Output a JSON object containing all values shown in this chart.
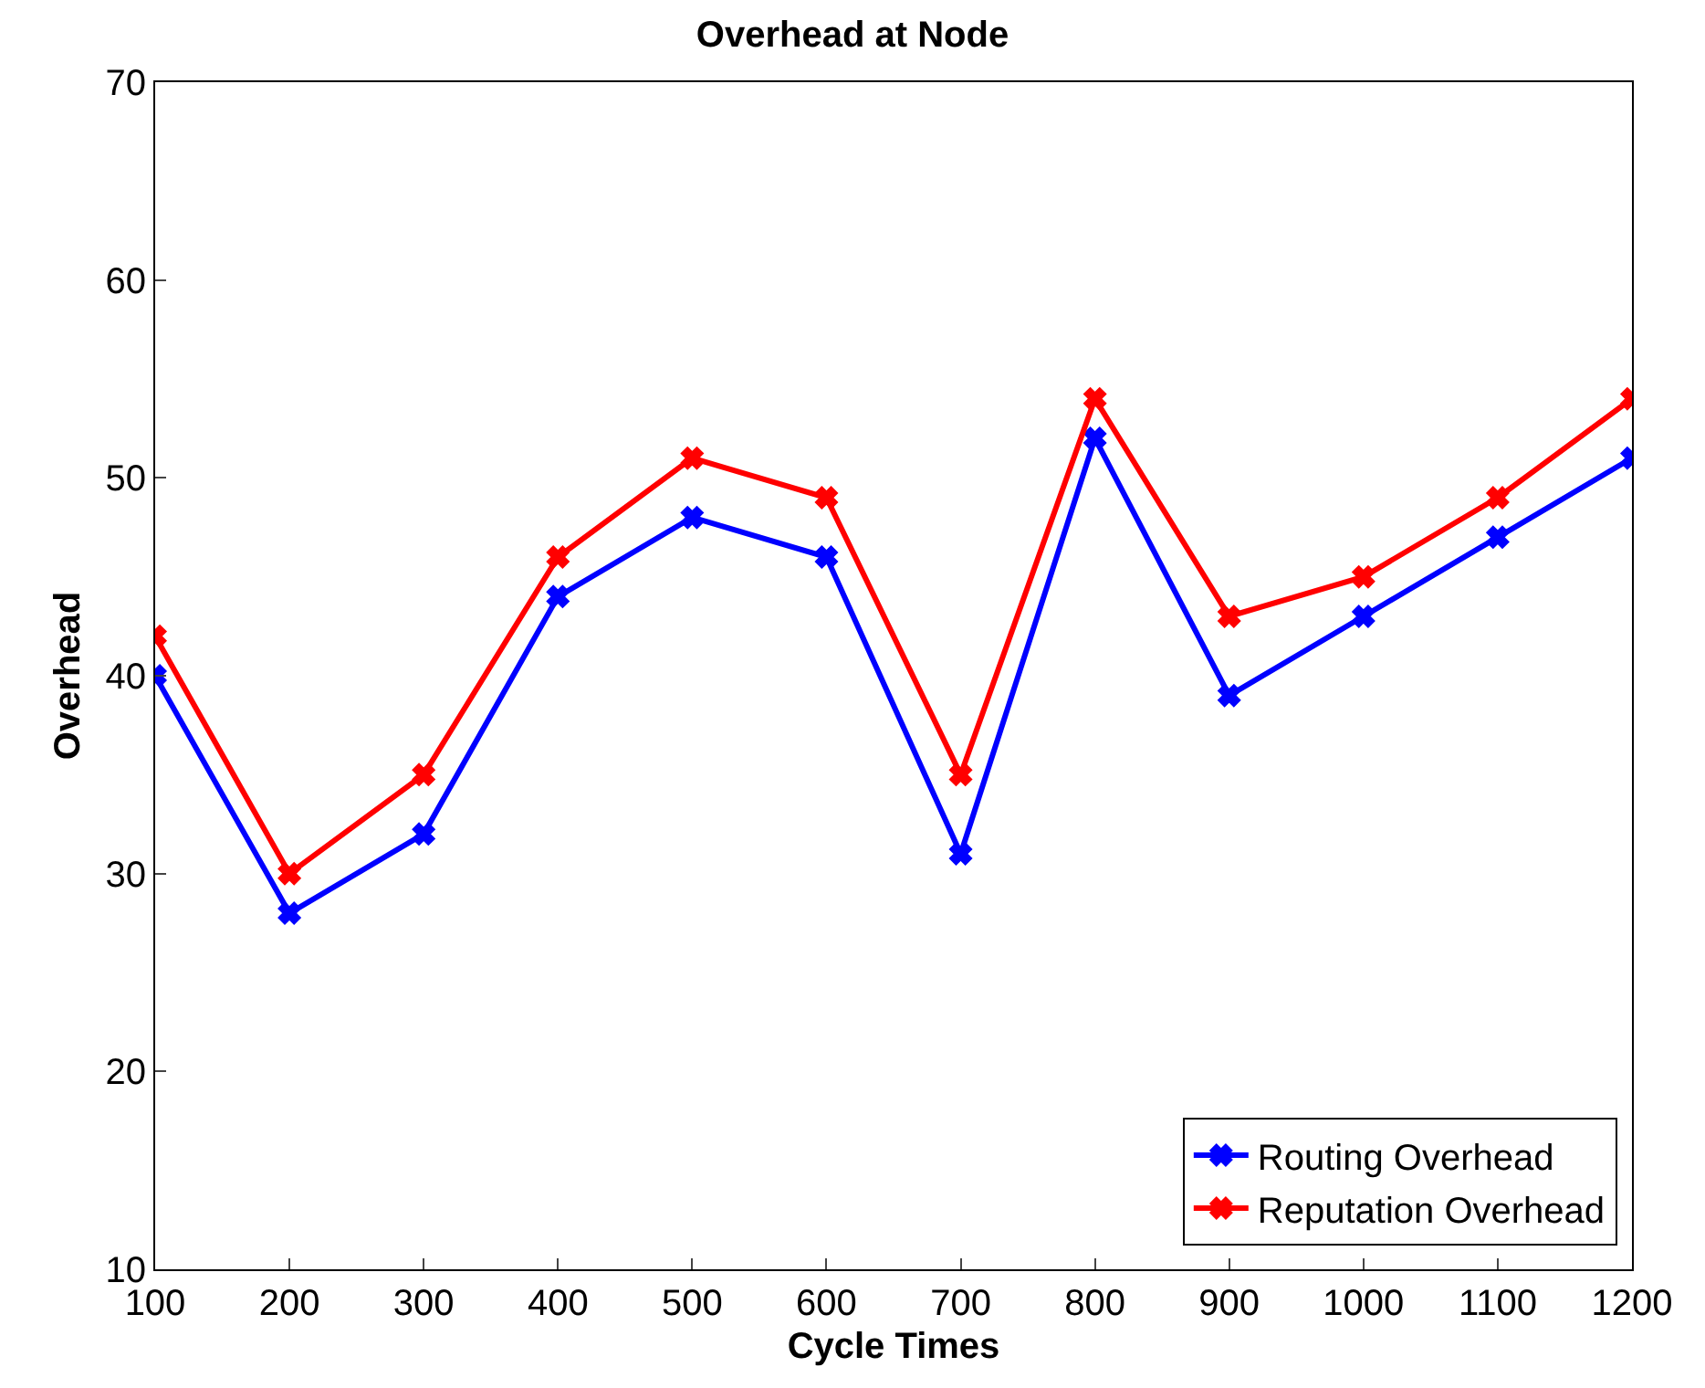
{
  "chart_data": {
    "type": "line",
    "title": "Overhead at Node",
    "xlabel": "Cycle Times",
    "ylabel": "Overhead",
    "x": [
      100,
      200,
      300,
      400,
      500,
      600,
      700,
      800,
      900,
      1000,
      1100,
      1200
    ],
    "series": [
      {
        "name": "Routing Overhead",
        "color": "#0000ff",
        "values": [
          40,
          28,
          32,
          44,
          48,
          46,
          31,
          52,
          39,
          43,
          47,
          51
        ]
      },
      {
        "name": "Reputation Overhead",
        "color": "#ff0000",
        "values": [
          42,
          30,
          35,
          46,
          51,
          49,
          35,
          54,
          43,
          45,
          49,
          54
        ]
      }
    ],
    "xlim": [
      100,
      1200
    ],
    "xticks": [
      100,
      200,
      300,
      400,
      500,
      600,
      700,
      800,
      900,
      1000,
      1100,
      1200
    ],
    "ylim": [
      10,
      70
    ],
    "yticks": [
      10,
      20,
      30,
      40,
      50,
      60,
      70
    ],
    "legend": "bottom right",
    "marker": "cross",
    "line_style": "solid"
  }
}
